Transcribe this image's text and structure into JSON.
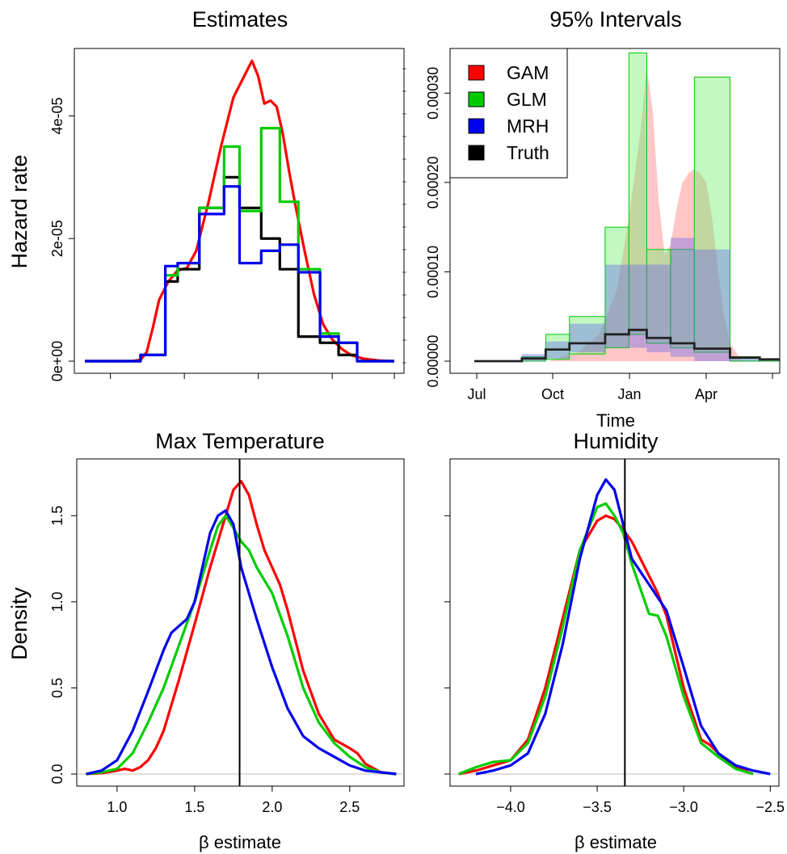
{
  "chart_data": [
    {
      "id": "estimates",
      "type": "line",
      "title": "Estimates",
      "xlabel": "",
      "ylabel": "Hazard rate",
      "ylim": [
        0,
        5.1e-05
      ],
      "y_ticks": [
        0,
        2e-05,
        4e-05
      ],
      "y_tick_labels": [
        "0e+00",
        "2e-05",
        "4e-05"
      ],
      "series": [
        {
          "name": "Truth",
          "color": "#000000",
          "kind": "step",
          "breaks": [
            0,
            18,
            26,
            30,
            37,
            45,
            50,
            57,
            63,
            69,
            76,
            82,
            88,
            100
          ],
          "values": [
            0,
            1e-06,
            1.3e-05,
            1.5e-05,
            2.5e-05,
            3e-05,
            2.5e-05,
            2e-05,
            1.5e-05,
            4e-06,
            3e-06,
            1e-06,
            0
          ]
        },
        {
          "name": "GLM",
          "color": "#00cc00",
          "kind": "step",
          "breaks": [
            0,
            18,
            26,
            30,
            37,
            45,
            50,
            57,
            63,
            69,
            76,
            82,
            88,
            100
          ],
          "values": [
            0,
            1e-06,
            1.4e-05,
            1.6e-05,
            2.5e-05,
            3.5e-05,
            2.45e-05,
            3.8e-05,
            2.6e-05,
            1.5e-05,
            4.5e-06,
            3e-06,
            0
          ]
        },
        {
          "name": "MRH",
          "color": "#0000ee",
          "kind": "step",
          "breaks": [
            0,
            18,
            26,
            30,
            37,
            45,
            50,
            57,
            63,
            69,
            76,
            82,
            88,
            100
          ],
          "values": [
            0,
            1e-06,
            1.55e-05,
            1.6e-05,
            2.4e-05,
            2.85e-05,
            1.6e-05,
            1.8e-05,
            1.9e-05,
            1.45e-05,
            4e-06,
            3e-06,
            0
          ]
        },
        {
          "name": "GAM",
          "color": "#ff0000",
          "kind": "line",
          "x": [
            0,
            15,
            18,
            20,
            22,
            24,
            27,
            30,
            33,
            36,
            40,
            44,
            48,
            52,
            54,
            56,
            58,
            60,
            62,
            64,
            66,
            68,
            71,
            74,
            77,
            80,
            83,
            86,
            90,
            95,
            100
          ],
          "y": [
            0,
            0,
            2e-07,
            1.5e-06,
            5.5e-06,
            1e-05,
            1.3e-05,
            1.48e-05,
            1.52e-05,
            1.8e-05,
            2.6e-05,
            3.5e-05,
            4.3e-05,
            4.7e-05,
            4.9e-05,
            4.65e-05,
            4.2e-05,
            4.25e-05,
            4.15e-05,
            3.7e-05,
            3.1e-05,
            2.55e-05,
            1.8e-05,
            1.1e-05,
            6e-06,
            3.5e-06,
            2e-06,
            1e-06,
            4e-07,
            1e-07,
            0
          ]
        }
      ]
    },
    {
      "id": "intervals",
      "type": "area",
      "title": "95% Intervals",
      "xlabel": "Time",
      "ylabel": "",
      "xlim": [
        0,
        100
      ],
      "ylim": [
        0,
        0.00035
      ],
      "x_ticks": [
        9,
        37,
        65,
        93
      ],
      "x_tick_labels": [
        "Jul",
        "Oct",
        "Jan",
        "Apr"
      ],
      "y_ticks": [
        0,
        0.0001,
        0.0002,
        0.0003
      ],
      "y_tick_labels": [
        "0.00000",
        "0.00010",
        "0.00020",
        "0.00030"
      ],
      "legend": {
        "position": "top-left",
        "entries": [
          {
            "name": "GAM",
            "color": "#ff0000"
          },
          {
            "name": "GLM",
            "color": "#00cc00"
          },
          {
            "name": "MRH",
            "color": "#0000ee"
          },
          {
            "name": "Truth",
            "color": "#000000"
          }
        ]
      },
      "bands": [
        {
          "name": "GAM",
          "color": "#ff8080",
          "kind": "curve",
          "x": [
            25,
            35,
            42,
            48,
            52,
            56,
            58,
            60,
            62,
            64,
            66,
            68,
            70,
            72,
            74,
            76,
            78,
            80,
            82,
            84,
            86,
            88,
            90,
            94
          ],
          "y": [
            0,
            1e-05,
            3e-05,
            8e-05,
            0.00016,
            0.00026,
            0.00033,
            0.00028,
            0.00018,
            0.00012,
            0.00013,
            0.00017,
            0.0002,
            0.00021,
            0.000215,
            0.00021,
            0.0002,
            0.00016,
            0.0001,
            5e-05,
            2e-05,
            1e-05,
            0,
            0
          ]
        },
        {
          "name": "GLM",
          "color": "#66ee66",
          "kind": "step",
          "breaks": [
            0,
            16,
            24,
            32,
            44,
            52,
            58,
            66,
            74,
            86,
            96,
            114
          ],
          "upper": [
            0,
            5e-06,
            3e-05,
            5e-05,
            0.00015,
            0.000345,
            0.000125,
            0.000125,
            0.000318,
            5e-06,
            2e-06
          ],
          "lower": [
            0,
            0,
            2e-06,
            8e-06,
            1.5e-05,
            3e-05,
            2e-05,
            1.5e-05,
            1e-05,
            0,
            0
          ]
        },
        {
          "name": "MRH",
          "color": "#6666ee",
          "kind": "step",
          "breaks": [
            0,
            16,
            24,
            32,
            44,
            58,
            66,
            74,
            86,
            96,
            114
          ],
          "upper": [
            0,
            8e-06,
            2.2e-05,
            4.2e-05,
            0.000108,
            0.000108,
            0.000138,
            0.000125,
            5e-06,
            2e-06
          ],
          "lower": [
            0,
            0,
            3e-06,
            1e-05,
            1.5e-05,
            1e-05,
            5e-06,
            0,
            0,
            0
          ]
        }
      ],
      "truth": {
        "breaks": [
          0,
          16,
          24,
          32,
          44,
          52,
          58,
          66,
          74,
          86,
          96,
          114
        ],
        "values": [
          0,
          3e-06,
          1.3e-05,
          2e-05,
          3e-05,
          3.5e-05,
          2.6e-05,
          2e-05,
          1.4e-05,
          4e-06,
          2e-06
        ]
      }
    },
    {
      "id": "maxtemp",
      "type": "line",
      "title": "Max Temperature",
      "xlabel": "β estimate",
      "ylabel": "Density",
      "xlim": [
        0.74,
        2.85
      ],
      "ylim": [
        0,
        1.75
      ],
      "x_ticks": [
        1.0,
        1.5,
        2.0,
        2.5
      ],
      "x_tick_labels": [
        "1.0",
        "1.5",
        "2.0",
        "2.5"
      ],
      "y_ticks": [
        0,
        0.5,
        1.0,
        1.5
      ],
      "y_tick_labels": [
        "0.0",
        "0.5",
        "1.0",
        "1.5"
      ],
      "vline": 1.79,
      "series": [
        {
          "name": "GAM",
          "color": "#ff0000",
          "x": [
            0.8,
            0.9,
            1.0,
            1.05,
            1.1,
            1.15,
            1.2,
            1.25,
            1.3,
            1.4,
            1.5,
            1.6,
            1.7,
            1.75,
            1.8,
            1.85,
            1.9,
            1.95,
            2.0,
            2.05,
            2.1,
            2.2,
            2.3,
            2.4,
            2.5,
            2.55,
            2.6,
            2.7,
            2.8
          ],
          "y": [
            0,
            0.005,
            0.02,
            0.03,
            0.02,
            0.04,
            0.08,
            0.15,
            0.25,
            0.55,
            0.87,
            1.2,
            1.5,
            1.65,
            1.7,
            1.62,
            1.45,
            1.3,
            1.2,
            1.1,
            0.95,
            0.6,
            0.35,
            0.2,
            0.15,
            0.12,
            0.06,
            0.01,
            0
          ]
        },
        {
          "name": "GLM",
          "color": "#00cc00",
          "x": [
            0.8,
            0.9,
            1.0,
            1.1,
            1.2,
            1.3,
            1.4,
            1.5,
            1.6,
            1.65,
            1.7,
            1.75,
            1.8,
            1.85,
            1.9,
            2.0,
            2.1,
            2.2,
            2.3,
            2.4,
            2.5,
            2.6,
            2.7,
            2.8
          ],
          "y": [
            0,
            0.01,
            0.03,
            0.12,
            0.3,
            0.5,
            0.75,
            1.0,
            1.3,
            1.44,
            1.5,
            1.43,
            1.35,
            1.3,
            1.2,
            1.05,
            0.8,
            0.5,
            0.3,
            0.18,
            0.1,
            0.04,
            0.01,
            0
          ]
        },
        {
          "name": "MRH",
          "color": "#0000ee",
          "x": [
            0.8,
            0.9,
            1.0,
            1.1,
            1.2,
            1.3,
            1.35,
            1.4,
            1.45,
            1.5,
            1.55,
            1.6,
            1.65,
            1.7,
            1.75,
            1.8,
            1.85,
            1.9,
            2.0,
            2.1,
            2.2,
            2.3,
            2.4,
            2.5,
            2.6,
            2.7,
            2.8
          ],
          "y": [
            0,
            0.02,
            0.08,
            0.25,
            0.48,
            0.72,
            0.82,
            0.86,
            0.9,
            1.0,
            1.2,
            1.4,
            1.5,
            1.53,
            1.45,
            1.2,
            1.05,
            0.9,
            0.62,
            0.38,
            0.22,
            0.15,
            0.1,
            0.05,
            0.02,
            0.01,
            0
          ]
        }
      ]
    },
    {
      "id": "humidity",
      "type": "line",
      "title": "Humidity",
      "xlabel": "β estimate",
      "ylabel": "",
      "xlim": [
        -4.35,
        -2.45
      ],
      "ylim": [
        0,
        1.75
      ],
      "x_ticks": [
        -4.0,
        -3.5,
        -3.0,
        -2.5
      ],
      "x_tick_labels": [
        "−4.0",
        "−3.5",
        "−3.0",
        "−2.5"
      ],
      "y_ticks": [
        0,
        0.5,
        1.0,
        1.5
      ],
      "vline": -3.34,
      "series": [
        {
          "name": "GAM",
          "color": "#ff0000",
          "x": [
            -4.3,
            -4.2,
            -4.1,
            -4.0,
            -3.9,
            -3.8,
            -3.7,
            -3.6,
            -3.5,
            -3.45,
            -3.4,
            -3.35,
            -3.3,
            -3.2,
            -3.15,
            -3.1,
            -3.0,
            -2.9,
            -2.85,
            -2.8,
            -2.7,
            -2.6
          ],
          "y": [
            0,
            0.02,
            0.05,
            0.08,
            0.2,
            0.5,
            0.9,
            1.3,
            1.47,
            1.5,
            1.48,
            1.42,
            1.35,
            1.15,
            1.05,
            0.92,
            0.5,
            0.2,
            0.17,
            0.12,
            0.04,
            0
          ]
        },
        {
          "name": "GLM",
          "color": "#00cc00",
          "x": [
            -4.3,
            -4.2,
            -4.1,
            -4.0,
            -3.9,
            -3.8,
            -3.7,
            -3.6,
            -3.5,
            -3.45,
            -3.4,
            -3.35,
            -3.3,
            -3.2,
            -3.15,
            -3.1,
            -3.0,
            -2.9,
            -2.8,
            -2.7,
            -2.6
          ],
          "y": [
            0,
            0.04,
            0.07,
            0.08,
            0.18,
            0.45,
            0.85,
            1.3,
            1.55,
            1.57,
            1.5,
            1.4,
            1.22,
            0.93,
            0.92,
            0.8,
            0.45,
            0.18,
            0.1,
            0.03,
            0
          ]
        },
        {
          "name": "MRH",
          "color": "#0000ee",
          "x": [
            -4.2,
            -4.1,
            -4.0,
            -3.9,
            -3.8,
            -3.7,
            -3.6,
            -3.5,
            -3.45,
            -3.4,
            -3.35,
            -3.3,
            -3.2,
            -3.1,
            -3.0,
            -2.9,
            -2.8,
            -2.7,
            -2.6,
            -2.5
          ],
          "y": [
            0,
            0.02,
            0.05,
            0.12,
            0.35,
            0.75,
            1.25,
            1.62,
            1.71,
            1.65,
            1.45,
            1.25,
            1.1,
            0.95,
            0.62,
            0.28,
            0.12,
            0.05,
            0.02,
            0
          ]
        }
      ]
    }
  ]
}
